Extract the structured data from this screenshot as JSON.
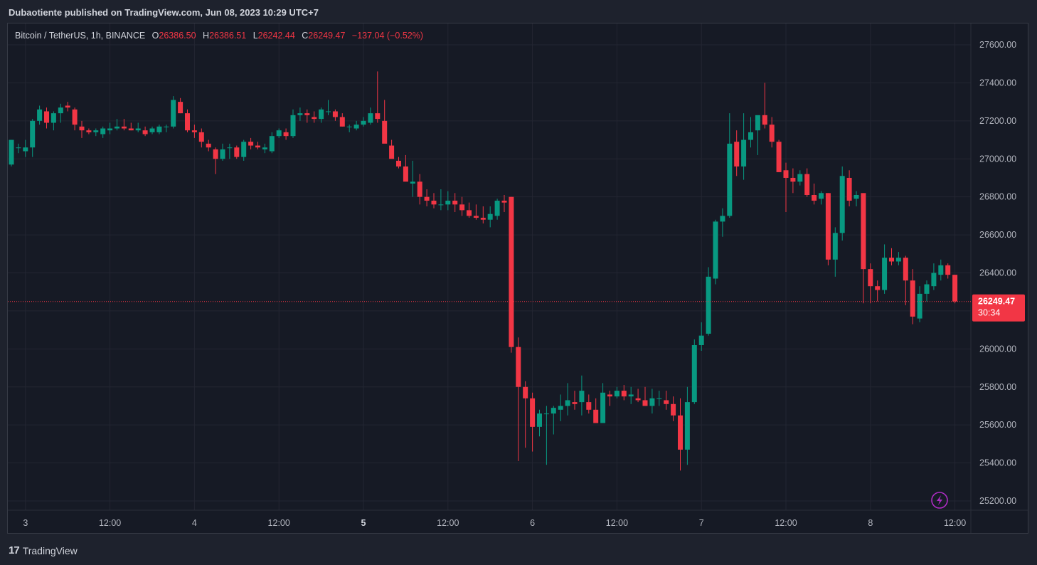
{
  "header": {
    "publisher_line": "Dubaotiente published on TradingView.com, Jun 08, 2023 10:29 UTC+7"
  },
  "symbol": {
    "name": "Bitcoin / TetherUS, 1h, BINANCE",
    "open_label": "O",
    "open": "26386.50",
    "high_label": "H",
    "high": "26386.51",
    "low_label": "L",
    "low": "26242.44",
    "close_label": "C",
    "close": "26249.47",
    "change": "−137.04 (−0.52%)"
  },
  "price_tag": {
    "price": "26249.47",
    "countdown": "30:34"
  },
  "footer": {
    "brand": "TradingView"
  },
  "colors": {
    "up": "#089981",
    "down": "#f23645",
    "background": "#161a25",
    "grid": "#232632",
    "text": "#b2b5be"
  },
  "chart_data": {
    "type": "candlestick",
    "timeframe": "1h",
    "ylim": [
      25120,
      27700
    ],
    "y_ticks": [
      "27600.00",
      "27400.00",
      "27200.00",
      "27000.00",
      "26800.00",
      "26600.00",
      "26400.00",
      "26200.00",
      "26000.00",
      "25800.00",
      "25600.00",
      "25400.00",
      "25200.00"
    ],
    "x_ticks": [
      {
        "label": "3",
        "bold": false,
        "index": 2
      },
      {
        "label": "12:00",
        "bold": false,
        "index": 14
      },
      {
        "label": "4",
        "bold": false,
        "index": 26
      },
      {
        "label": "12:00",
        "bold": false,
        "index": 38
      },
      {
        "label": "5",
        "bold": true,
        "index": 50
      },
      {
        "label": "12:00",
        "bold": false,
        "index": 62
      },
      {
        "label": "6",
        "bold": false,
        "index": 74
      },
      {
        "label": "12:00",
        "bold": false,
        "index": 86
      },
      {
        "label": "7",
        "bold": false,
        "index": 98
      },
      {
        "label": "12:00",
        "bold": false,
        "index": 110
      },
      {
        "label": "8",
        "bold": false,
        "index": 122
      },
      {
        "label": "12:00",
        "bold": false,
        "index": 134
      }
    ],
    "last_price": 26249.47,
    "candles": [
      [
        26970,
        27100,
        26960,
        27100
      ],
      [
        27060,
        27080,
        27030,
        27060
      ],
      [
        27040,
        27100,
        27010,
        27060
      ],
      [
        27060,
        27210,
        27010,
        27200
      ],
      [
        27200,
        27280,
        27180,
        27260
      ],
      [
        27250,
        27270,
        27160,
        27190
      ],
      [
        27190,
        27250,
        27150,
        27240
      ],
      [
        27240,
        27290,
        27190,
        27270
      ],
      [
        27280,
        27300,
        27250,
        27270
      ],
      [
        27260,
        27270,
        27150,
        27180
      ],
      [
        27170,
        27200,
        27110,
        27150
      ],
      [
        27150,
        27160,
        27130,
        27140
      ],
      [
        27140,
        27160,
        27120,
        27150
      ],
      [
        27130,
        27170,
        27110,
        27160
      ],
      [
        27150,
        27190,
        27130,
        27160
      ],
      [
        27160,
        27210,
        27150,
        27170
      ],
      [
        27170,
        27210,
        27150,
        27160
      ],
      [
        27160,
        27190,
        27150,
        27150
      ],
      [
        27150,
        27190,
        27140,
        27160
      ],
      [
        27150,
        27170,
        27120,
        27130
      ],
      [
        27140,
        27170,
        27130,
        27160
      ],
      [
        27140,
        27180,
        27130,
        27170
      ],
      [
        27170,
        27180,
        27140,
        27170
      ],
      [
        27170,
        27330,
        27160,
        27310
      ],
      [
        27300,
        27320,
        27240,
        27240
      ],
      [
        27240,
        27260,
        27140,
        27150
      ],
      [
        27150,
        27180,
        27110,
        27140
      ],
      [
        27140,
        27160,
        27060,
        27090
      ],
      [
        27080,
        27100,
        27040,
        27060
      ],
      [
        27050,
        27060,
        26920,
        27000
      ],
      [
        27000,
        27080,
        26990,
        27050
      ],
      [
        27060,
        27080,
        27000,
        27060
      ],
      [
        27060,
        27070,
        27000,
        27010
      ],
      [
        27010,
        27100,
        26990,
        27090
      ],
      [
        27090,
        27110,
        27050,
        27070
      ],
      [
        27070,
        27090,
        27050,
        27060
      ],
      [
        27050,
        27080,
        27030,
        27060
      ],
      [
        27040,
        27140,
        27030,
        27120
      ],
      [
        27120,
        27160,
        27110,
        27150
      ],
      [
        27140,
        27160,
        27100,
        27120
      ],
      [
        27120,
        27260,
        27110,
        27230
      ],
      [
        27230,
        27270,
        27200,
        27240
      ],
      [
        27240,
        27260,
        27190,
        27230
      ],
      [
        27220,
        27250,
        27190,
        27210
      ],
      [
        27210,
        27270,
        27190,
        27260
      ],
      [
        27250,
        27310,
        27230,
        27250
      ],
      [
        27250,
        27260,
        27200,
        27220
      ],
      [
        27220,
        27240,
        27170,
        27170
      ],
      [
        27170,
        27180,
        27140,
        27170
      ],
      [
        27160,
        27200,
        27150,
        27180
      ],
      [
        27180,
        27220,
        27170,
        27200
      ],
      [
        27190,
        27270,
        27180,
        27240
      ],
      [
        27240,
        27460,
        27190,
        27210
      ],
      [
        27200,
        27310,
        27100,
        27080
      ],
      [
        27070,
        27100,
        27010,
        27000
      ],
      [
        26990,
        27010,
        26950,
        26960
      ],
      [
        26960,
        27020,
        26900,
        26880
      ],
      [
        26870,
        26990,
        26800,
        26880
      ],
      [
        26880,
        26920,
        26760,
        26800
      ],
      [
        26800,
        26840,
        26750,
        26780
      ],
      [
        26780,
        26820,
        26740,
        26760
      ],
      [
        26760,
        26840,
        26730,
        26760
      ],
      [
        26760,
        26830,
        26730,
        26780
      ],
      [
        26780,
        26820,
        26720,
        26760
      ],
      [
        26760,
        26800,
        26700,
        26730
      ],
      [
        26730,
        26770,
        26690,
        26700
      ],
      [
        26700,
        26760,
        26680,
        26690
      ],
      [
        26690,
        26750,
        26660,
        26680
      ],
      [
        26680,
        26750,
        26640,
        26710
      ],
      [
        26700,
        26790,
        26680,
        26780
      ],
      [
        26780,
        26810,
        26720,
        26770
      ],
      [
        26800,
        26800,
        25980,
        26010
      ],
      [
        26010,
        26060,
        25410,
        25800
      ],
      [
        25800,
        25830,
        25480,
        25740
      ],
      [
        25740,
        25770,
        25460,
        25590
      ],
      [
        25590,
        25680,
        25540,
        25660
      ],
      [
        25660,
        25700,
        25390,
        25660
      ],
      [
        25660,
        25700,
        25550,
        25690
      ],
      [
        25680,
        25760,
        25620,
        25700
      ],
      [
        25700,
        25820,
        25650,
        25730
      ],
      [
        25720,
        25780,
        25680,
        25710
      ],
      [
        25720,
        25860,
        25650,
        25780
      ],
      [
        25720,
        25760,
        25660,
        25680
      ],
      [
        25680,
        25740,
        25610,
        25610
      ],
      [
        25610,
        25820,
        25610,
        25770
      ],
      [
        25760,
        25780,
        25700,
        25750
      ],
      [
        25750,
        25800,
        25740,
        25780
      ],
      [
        25780,
        25810,
        25730,
        25750
      ],
      [
        25750,
        25800,
        25710,
        25760
      ],
      [
        25740,
        25790,
        25720,
        25730
      ],
      [
        25730,
        25800,
        25700,
        25700
      ],
      [
        25700,
        25790,
        25660,
        25740
      ],
      [
        25740,
        25780,
        25700,
        25740
      ],
      [
        25730,
        25780,
        25680,
        25710
      ],
      [
        25710,
        25750,
        25620,
        25650
      ],
      [
        25650,
        25740,
        25360,
        25470
      ],
      [
        25470,
        25800,
        25390,
        25720
      ],
      [
        25720,
        26050,
        25710,
        26020
      ],
      [
        26020,
        26140,
        25990,
        26070
      ],
      [
        26080,
        26430,
        26070,
        26380
      ],
      [
        26370,
        26680,
        26340,
        26670
      ],
      [
        26670,
        26740,
        26590,
        26700
      ],
      [
        26700,
        27240,
        26690,
        27080
      ],
      [
        27090,
        27150,
        26910,
        26960
      ],
      [
        26960,
        27240,
        26890,
        27100
      ],
      [
        27100,
        27220,
        27060,
        27140
      ],
      [
        27150,
        27220,
        27020,
        27230
      ],
      [
        27230,
        27400,
        27160,
        27180
      ],
      [
        27180,
        27220,
        27060,
        27090
      ],
      [
        27090,
        27100,
        26930,
        26930
      ],
      [
        26940,
        26980,
        26720,
        26900
      ],
      [
        26900,
        26950,
        26820,
        26880
      ],
      [
        26880,
        26940,
        26860,
        26920
      ],
      [
        26920,
        26950,
        26800,
        26810
      ],
      [
        26810,
        26870,
        26760,
        26780
      ],
      [
        26790,
        26830,
        26760,
        26820
      ],
      [
        26820,
        26820,
        26440,
        26470
      ],
      [
        26470,
        26640,
        26380,
        26610
      ],
      [
        26610,
        26960,
        26570,
        26910
      ],
      [
        26900,
        26940,
        26750,
        26780
      ],
      [
        26790,
        26830,
        26750,
        26810
      ],
      [
        26820,
        26820,
        26240,
        26420
      ],
      [
        26420,
        26450,
        26240,
        26330
      ],
      [
        26330,
        26360,
        26250,
        26310
      ],
      [
        26310,
        26550,
        26290,
        26480
      ],
      [
        26480,
        26530,
        26440,
        26460
      ],
      [
        26460,
        26510,
        26440,
        26480
      ],
      [
        26480,
        26490,
        26230,
        26360
      ],
      [
        26360,
        26420,
        26130,
        26170
      ],
      [
        26160,
        26330,
        26140,
        26290
      ],
      [
        26290,
        26360,
        26250,
        26340
      ],
      [
        26330,
        26450,
        26310,
        26400
      ],
      [
        26390,
        26470,
        26360,
        26440
      ],
      [
        26440,
        26450,
        26370,
        26390
      ],
      [
        26390,
        26390,
        26240,
        26250
      ]
    ]
  }
}
